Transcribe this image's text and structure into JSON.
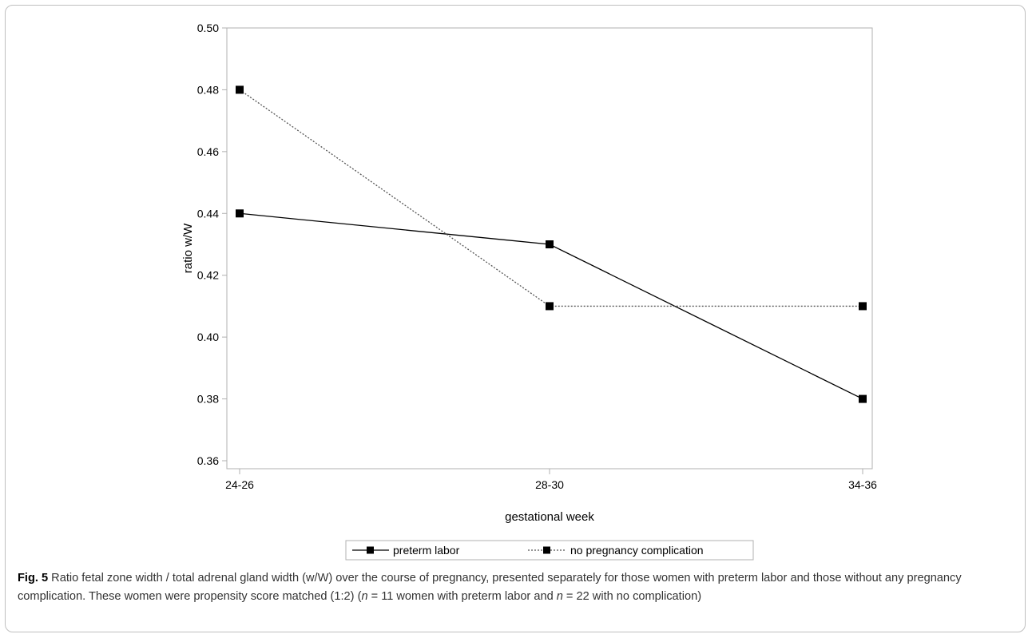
{
  "chart_data": {
    "type": "line",
    "categories": [
      "24-26",
      "28-30",
      "34-36"
    ],
    "series": [
      {
        "name": "preterm labor",
        "values": [
          0.44,
          0.43,
          0.38
        ],
        "line_style": "solid",
        "marker": "square",
        "color": "#000000"
      },
      {
        "name": "no pregnancy complication",
        "values": [
          0.48,
          0.41,
          0.41
        ],
        "line_style": "dotted",
        "marker": "square",
        "color": "#000000"
      }
    ],
    "xlabel": "gestational week",
    "ylabel": "ratio w/W",
    "ylim": [
      0.36,
      0.5
    ],
    "yticks": [
      "0.36",
      "0.38",
      "0.40",
      "0.42",
      "0.44",
      "0.46",
      "0.48",
      "0.50"
    ],
    "grid": false,
    "legend_position": "bottom"
  },
  "caption": {
    "figure_label": "Fig. 5",
    "text_1": " Ratio fetal zone width / total adrenal gland width (w/W) over the course of pregnancy, presented separately for those women with preterm labor and those without any pregnancy complication. These women were propensity score matched (1:2) (",
    "n_symbol_1": "n",
    "text_2": " = 11 women with preterm labor and ",
    "n_symbol_2": "n",
    "text_3": " = 22 with no complication)"
  }
}
